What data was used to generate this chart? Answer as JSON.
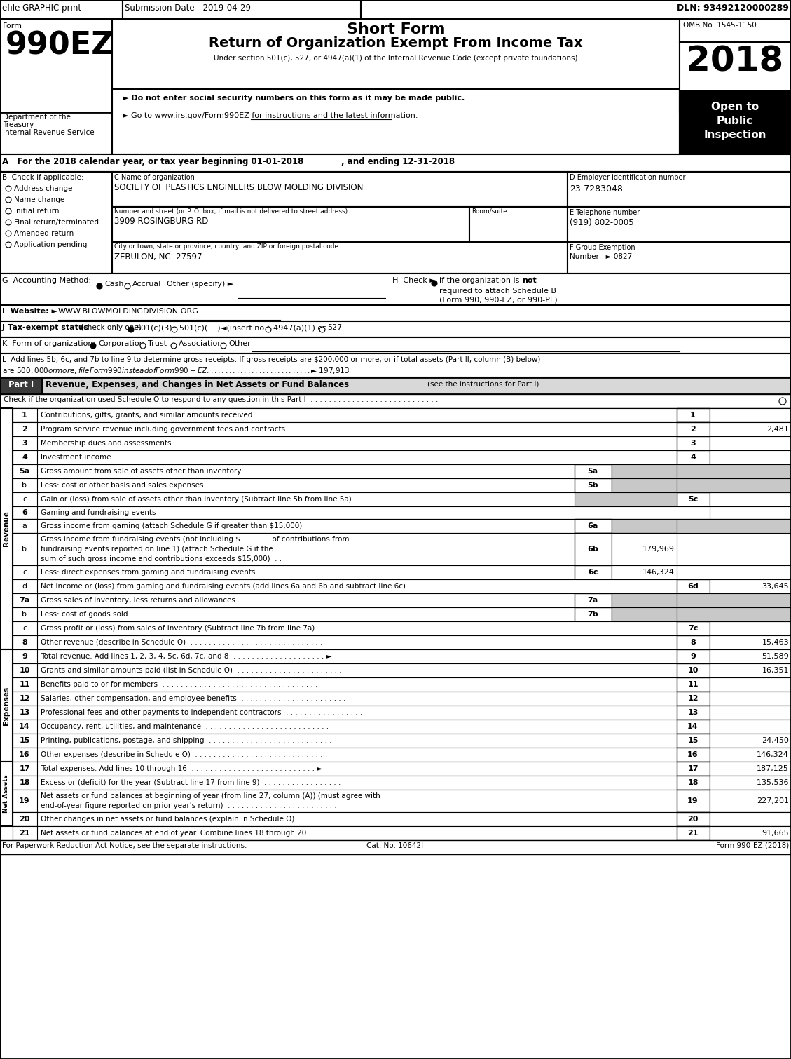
{
  "header_bar_efile": "efile GRAPHIC print",
  "header_bar_submission": "Submission Date - 2019-04-29",
  "header_bar_dln": "DLN: 93492120000289",
  "form_number": "990EZ",
  "form_prefix": "Form",
  "form_title": "Short Form",
  "form_subtitle": "Return of Organization Exempt From Income Tax",
  "omb": "OMB No. 1545-1150",
  "year": "2018",
  "under_section": "Under section 501(c), 527, or 4947(a)(1) of the Internal Revenue Code (except private foundations)",
  "bullet1": "► Do not enter social security numbers on this form as it may be made public.",
  "bullet2": "► Go to www.irs.gov/Form990EZ for instructions and the latest information.",
  "dept_line1": "Department of the",
  "dept_line2": "Treasury",
  "dept_line3": "Internal Revenue Service",
  "sec_A": "A   For the 2018 calendar year, or tax year beginning 01-01-2018             , and ending 12-31-2018",
  "check_items": [
    "Address change",
    "Name change",
    "Initial return",
    "Final return/terminated",
    "Amended return",
    "Application pending"
  ],
  "org_name": "SOCIETY OF PLASTICS ENGINEERS BLOW MOLDING DIVISION",
  "ein": "23-7283048",
  "street_addr": "3909 ROSINGBURG RD",
  "phone": "(919) 802-0005",
  "city_addr": "ZEBULON, NC  27597",
  "group_num": "0827",
  "sec_L_line1": "L  Add lines 5b, 6c, and 7b to line 9 to determine gross receipts. If gross receipts are $200,000 or more, or if total assets (Part II, column (B) below)",
  "sec_L_line2": "are $500,000 or more, file Form 990 instead of Form 990-EZ  . . . . . . . . . . . . . . . . . . . . . . . . . . . . ► $ 197,913",
  "footer_left": "For Paperwork Reduction Act Notice, see the separate instructions.",
  "footer_mid": "Cat. No. 10642I",
  "footer_right": "Form 990-EZ (2018)",
  "line_defs": [
    [
      "1",
      "Contributions, gifts, grants, and similar amounts received  . . . . . . . . . . . . . . . . . . . . . . .",
      "",
      "",
      "1",
      "",
      20,
      false,
      false,
      false
    ],
    [
      "2",
      "Program service revenue including government fees and contracts  . . . . . . . . . . . . . . . .",
      "",
      "",
      "2",
      "2,481",
      20,
      false,
      false,
      false
    ],
    [
      "3",
      "Membership dues and assessments  . . . . . . . . . . . . . . . . . . . . . . . . . . . . . . . . . .",
      "",
      "",
      "3",
      "",
      20,
      false,
      false,
      false
    ],
    [
      "4",
      "Investment income  . . . . . . . . . . . . . . . . . . . . . . . . . . . . . . . . . . . . . . . . . .",
      "",
      "",
      "4",
      "",
      20,
      false,
      false,
      false
    ],
    [
      "5a",
      "Gross amount from sale of assets other than inventory  . . . . .",
      "5a",
      "",
      "",
      "",
      20,
      false,
      true,
      false
    ],
    [
      "b",
      "Less: cost or other basis and sales expenses  . . . . . . . .",
      "5b",
      "",
      "",
      "",
      20,
      false,
      true,
      false
    ],
    [
      "c",
      "Gain or (loss) from sale of assets other than inventory (Subtract line 5b from line 5a) . . . . . . .",
      "",
      "",
      "5c",
      "",
      20,
      true,
      false,
      false
    ],
    [
      "6",
      "Gaming and fundraising events",
      "",
      "",
      "",
      "",
      18,
      false,
      false,
      true
    ],
    [
      "a",
      "Gross income from gaming (attach Schedule G if greater than $15,000)",
      "6a",
      "",
      "",
      "",
      20,
      false,
      true,
      false
    ],
    [
      "b",
      "Gross income from fundraising events (not including $              of contributions from\nfundraising events reported on line 1) (attach Schedule G if the\nsum of such gross income and contributions exceeds $15,000)  . .",
      "6b",
      "179,969",
      "",
      "",
      46,
      false,
      false,
      false
    ],
    [
      "c",
      "Less: direct expenses from gaming and fundraising events  . . .",
      "6c",
      "146,324",
      "",
      "",
      20,
      false,
      false,
      false
    ],
    [
      "d",
      "Net income or (loss) from gaming and fundraising events (add lines 6a and 6b and subtract line 6c)",
      "",
      "",
      "6d",
      "33,645",
      20,
      false,
      false,
      false
    ],
    [
      "7a",
      "Gross sales of inventory, less returns and allowances  . . . . . . .",
      "7a",
      "",
      "",
      "",
      20,
      false,
      true,
      false
    ],
    [
      "b",
      "Less: cost of goods sold  . . . . . . . . . . . . . . . . . . . . . . .",
      "7b",
      "",
      "",
      "",
      20,
      false,
      true,
      false
    ],
    [
      "c",
      "Gross profit or (loss) from sales of inventory (Subtract line 7b from line 7a) . . . . . . . . . . .",
      "",
      "",
      "7c",
      "",
      20,
      false,
      false,
      false
    ],
    [
      "8",
      "Other revenue (describe in Schedule O)  . . . . . . . . . . . . . . . . . . . . . . . . . . . . .",
      "",
      "",
      "8",
      "15,463",
      20,
      false,
      false,
      false
    ],
    [
      "9",
      "Total revenue. Add lines 1, 2, 3, 4, 5c, 6d, 7c, and 8  . . . . . . . . . . . . . . . . . . . . ►",
      "",
      "",
      "9",
      "51,589",
      20,
      false,
      false,
      false
    ],
    [
      "10",
      "Grants and similar amounts paid (list in Schedule O)  . . . . . . . . . . . . . . . . . . . . . . .",
      "",
      "",
      "10",
      "16,351",
      20,
      false,
      false,
      false
    ],
    [
      "11",
      "Benefits paid to or for members  . . . . . . . . . . . . . . . . . . . . . . . . . . . . . . . . . .",
      "",
      "",
      "11",
      "",
      20,
      false,
      false,
      false
    ],
    [
      "12",
      "Salaries, other compensation, and employee benefits  . . . . . . . . . . . . . . . . . . . . . . .",
      "",
      "",
      "12",
      "",
      20,
      false,
      false,
      false
    ],
    [
      "13",
      "Professional fees and other payments to independent contractors  . . . . . . . . . . . . . . . . .",
      "",
      "",
      "13",
      "",
      20,
      false,
      false,
      false
    ],
    [
      "14",
      "Occupancy, rent, utilities, and maintenance  . . . . . . . . . . . . . . . . . . . . . . . . . . .",
      "",
      "",
      "14",
      "",
      20,
      false,
      false,
      false
    ],
    [
      "15",
      "Printing, publications, postage, and shipping  . . . . . . . . . . . . . . . . . . . . . . . . . . .",
      "",
      "",
      "15",
      "24,450",
      20,
      false,
      false,
      false
    ],
    [
      "16",
      "Other expenses (describe in Schedule O)  . . . . . . . . . . . . . . . . . . . . . . . . . . . . .",
      "",
      "",
      "16",
      "146,324",
      20,
      false,
      false,
      false
    ],
    [
      "17",
      "Total expenses. Add lines 10 through 16  . . . . . . . . . . . . . . . . . . . . . . . . . . . ►",
      "",
      "",
      "17",
      "187,125",
      20,
      false,
      false,
      false
    ],
    [
      "18",
      "Excess or (deficit) for the year (Subtract line 17 from line 9)  . . . . . . . . . . . . . . . . .",
      "",
      "",
      "18",
      "-135,536",
      20,
      false,
      false,
      false
    ],
    [
      "19",
      "Net assets or fund balances at beginning of year (from line 27, column (A)) (must agree with\nend-of-year figure reported on prior year's return)  . . . . . . . . . . . . . . . . . . . . . . . .",
      "",
      "",
      "19",
      "227,201",
      32,
      false,
      false,
      false
    ],
    [
      "20",
      "Other changes in net assets or fund balances (explain in Schedule O)  . . . . . . . . . . . . . .",
      "",
      "",
      "20",
      "",
      20,
      false,
      false,
      false
    ],
    [
      "21",
      "Net assets or fund balances at end of year. Combine lines 18 through 20  . . . . . . . . . . . .",
      "",
      "",
      "21",
      "91,665",
      20,
      false,
      false,
      false
    ]
  ]
}
